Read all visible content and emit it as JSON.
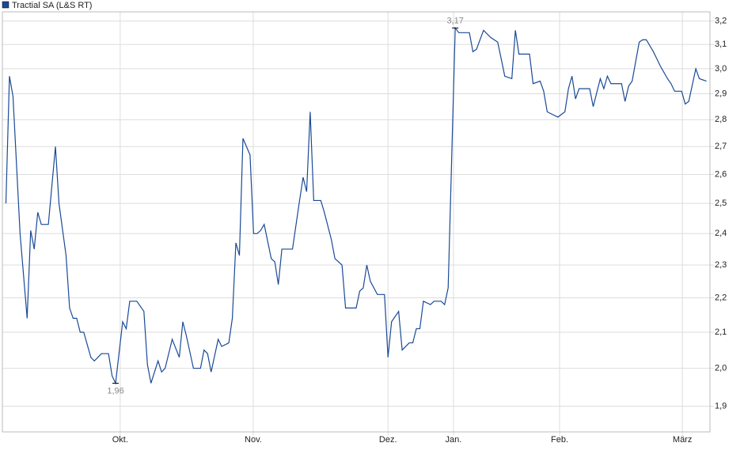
{
  "chart_data": {
    "type": "line",
    "series": [
      {
        "name": "Tractial SA (L&S RT)",
        "color": "#1a4a96",
        "x": [
          1,
          2,
          3,
          5,
          7,
          8,
          9,
          10,
          11,
          13,
          15,
          16,
          18,
          19,
          20,
          21,
          22,
          23,
          25,
          26,
          28,
          30,
          31,
          32,
          34,
          35,
          36,
          38,
          40,
          41,
          42,
          44,
          45,
          46,
          48,
          50,
          51,
          52,
          54,
          56,
          57,
          58,
          59,
          61,
          62,
          64,
          65,
          66,
          67,
          68,
          70,
          71,
          72,
          73,
          74,
          76,
          77,
          78,
          79,
          82,
          84,
          85,
          86,
          87,
          88,
          90,
          91,
          93,
          94,
          96,
          97,
          100,
          101,
          102,
          103,
          104,
          106,
          108,
          109,
          110,
          112,
          113,
          115,
          116,
          117,
          118,
          119,
          121,
          122,
          124,
          125,
          126,
          128,
          129,
          132,
          133,
          134,
          136,
          138,
          140,
          141,
          142,
          144,
          145,
          146,
          149,
          150,
          152,
          153,
          154,
          157,
          159,
          160,
          161,
          162,
          163,
          166,
          167,
          169,
          170,
          171,
          172,
          175,
          176,
          177,
          178,
          180,
          181,
          182,
          184,
          185,
          186,
          188,
          189,
          190,
          192,
          193,
          194,
          196,
          197,
          199
        ],
        "values": [
          2.5,
          2.97,
          2.89,
          2.4,
          2.14,
          2.41,
          2.35,
          2.47,
          2.43,
          2.43,
          2.7,
          2.5,
          2.33,
          2.17,
          2.14,
          2.14,
          2.1,
          2.1,
          2.03,
          2.02,
          2.04,
          2.04,
          1.98,
          1.96,
          2.13,
          2.11,
          2.19,
          2.19,
          2.16,
          2.01,
          1.96,
          2.02,
          1.99,
          2.0,
          2.08,
          2.03,
          2.13,
          2.09,
          2.0,
          2.0,
          2.05,
          2.04,
          1.99,
          2.08,
          2.06,
          2.07,
          2.14,
          2.37,
          2.33,
          2.73,
          2.67,
          2.4,
          2.4,
          2.41,
          2.43,
          2.32,
          2.31,
          2.24,
          2.35,
          2.35,
          2.51,
          2.59,
          2.54,
          2.83,
          2.51,
          2.51,
          2.47,
          2.38,
          2.32,
          2.3,
          2.17,
          2.17,
          2.22,
          2.23,
          2.3,
          2.25,
          2.21,
          2.21,
          2.03,
          2.13,
          2.16,
          2.05,
          2.07,
          2.07,
          2.11,
          2.11,
          2.19,
          2.18,
          2.19,
          2.19,
          2.18,
          2.23,
          3.17,
          3.15,
          3.15,
          3.07,
          3.08,
          3.16,
          3.13,
          3.11,
          3.04,
          2.97,
          2.96,
          3.16,
          3.06,
          3.06,
          2.94,
          2.95,
          2.91,
          2.83,
          2.81,
          2.83,
          2.92,
          2.97,
          2.88,
          2.92,
          2.92,
          2.85,
          2.96,
          2.92,
          2.97,
          2.94,
          2.94,
          2.87,
          2.93,
          2.95,
          3.11,
          3.12,
          3.12,
          3.07,
          3.04,
          3.01,
          2.96,
          2.94,
          2.91,
          2.91,
          2.86,
          2.87,
          3.0,
          2.96,
          2.95
        ]
      }
    ],
    "xlim": [
      0,
      200
    ],
    "xticks": [
      {
        "value": 33.3,
        "label": "Okt."
      },
      {
        "value": 70.9,
        "label": "Nov."
      },
      {
        "value": 109,
        "label": "Dez."
      },
      {
        "value": 127.5,
        "label": "Jan."
      },
      {
        "value": 157.5,
        "label": "Feb."
      },
      {
        "value": 192.2,
        "label": "März"
      }
    ],
    "ylim": [
      1.835,
      3.24
    ],
    "log_y": true,
    "yticks": [
      {
        "value": 1.9,
        "label": "1,9"
      },
      {
        "value": 2.0,
        "label": "2,0"
      },
      {
        "value": 2.1,
        "label": "2,1"
      },
      {
        "value": 2.2,
        "label": "2,2"
      },
      {
        "value": 2.3,
        "label": "2,3"
      },
      {
        "value": 2.4,
        "label": "2,4"
      },
      {
        "value": 2.5,
        "label": "2,5"
      },
      {
        "value": 2.6,
        "label": "2,6"
      },
      {
        "value": 2.7,
        "label": "2,7"
      },
      {
        "value": 2.8,
        "label": "2,8"
      },
      {
        "value": 2.9,
        "label": "2,9"
      },
      {
        "value": 3.0,
        "label": "3,0"
      },
      {
        "value": 3.1,
        "label": "3,1"
      },
      {
        "value": 3.2,
        "label": "3,2"
      }
    ],
    "annotations": [
      {
        "x": 32,
        "value": 1.96,
        "label": "1,96",
        "position": "below"
      },
      {
        "x": 128,
        "value": 3.17,
        "label": "3,17",
        "position": "above"
      }
    ],
    "grid": true
  }
}
